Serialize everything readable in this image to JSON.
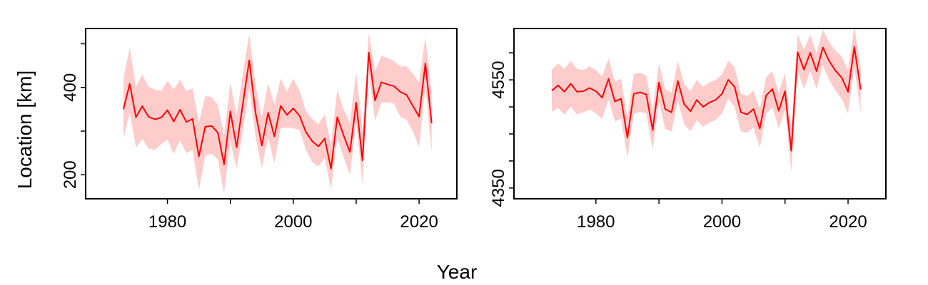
{
  "figure": {
    "xlabel": "Year",
    "ylabel": "Location [km]"
  },
  "chart_data": [
    {
      "type": "line",
      "title": "",
      "xlabel": "Year",
      "ylabel": "Location [km]",
      "xlim": [
        1967,
        2026
      ],
      "ylim": [
        145,
        535
      ],
      "x_ticks": [
        1980,
        2000,
        2020
      ],
      "x_minor_ticks": [
        1990,
        2010
      ],
      "y_ticks": [
        200,
        400
      ],
      "y_minor_ticks": [
        300,
        500
      ],
      "grid": false,
      "legend": "none",
      "line_color": "#ff0000",
      "band_color": "#ffcccc",
      "x": [
        1973,
        1974,
        1975,
        1976,
        1977,
        1978,
        1979,
        1980,
        1981,
        1982,
        1983,
        1984,
        1985,
        1986,
        1987,
        1988,
        1989,
        1990,
        1991,
        1992,
        1993,
        1994,
        1995,
        1996,
        1997,
        1998,
        1999,
        2000,
        2001,
        2002,
        2003,
        2004,
        2005,
        2006,
        2007,
        2008,
        2009,
        2010,
        2011,
        2012,
        2013,
        2014,
        2015,
        2016,
        2017,
        2018,
        2019,
        2020,
        2021,
        2022
      ],
      "y": [
        350,
        408,
        332,
        357,
        333,
        327,
        331,
        348,
        322,
        349,
        321,
        328,
        242,
        310,
        312,
        297,
        224,
        345,
        263,
        363,
        462,
        342,
        267,
        342,
        288,
        358,
        337,
        352,
        335,
        298,
        277,
        265,
        283,
        214,
        332,
        290,
        252,
        365,
        233,
        480,
        370,
        412,
        407,
        403,
        390,
        383,
        358,
        333,
        455,
        318
      ],
      "lower": [
        283,
        343,
        262,
        282,
        260,
        257,
        270,
        281,
        248,
        279,
        250,
        257,
        165,
        243,
        248,
        236,
        157,
        277,
        214,
        301,
        398,
        287,
        216,
        286,
        226,
        307,
        308,
        307,
        302,
        258,
        229,
        219,
        238,
        167,
        284,
        240,
        200,
        320,
        178,
        435,
        324,
        365,
        366,
        363,
        333,
        326,
        300,
        264,
        404,
        252
      ],
      "upper": [
        420,
        490,
        402,
        430,
        402,
        395,
        392,
        415,
        395,
        418,
        392,
        398,
        320,
        380,
        378,
        360,
        290,
        412,
        336,
        433,
        522,
        407,
        331,
        410,
        360,
        420,
        390,
        420,
        392,
        346,
        328,
        316,
        338,
        269,
        394,
        350,
        318,
        436,
        302,
        525,
        437,
        472,
        468,
        460,
        448,
        448,
        432,
        412,
        515,
        390
      ]
    },
    {
      "type": "line",
      "title": "",
      "xlabel": "Year",
      "ylabel": "",
      "xlim": [
        1967,
        2026
      ],
      "ylim": [
        4330,
        4645
      ],
      "x_ticks": [
        1980,
        2000,
        2020
      ],
      "x_minor_ticks": [
        1990,
        2010
      ],
      "y_ticks": [
        4350,
        4550
      ],
      "y_minor_ticks": [
        4400,
        4450,
        4500,
        4600
      ],
      "grid": false,
      "legend": "none",
      "line_color": "#ff0000",
      "band_color": "#ffcccc",
      "x": [
        1973,
        1974,
        1975,
        1976,
        1977,
        1978,
        1979,
        1980,
        1981,
        1982,
        1983,
        1984,
        1985,
        1986,
        1987,
        1988,
        1989,
        1990,
        1991,
        1992,
        1993,
        1994,
        1995,
        1996,
        1997,
        1998,
        1999,
        2000,
        2001,
        2002,
        2003,
        2004,
        2005,
        2006,
        2007,
        2008,
        2009,
        2010,
        2011,
        2012,
        2013,
        2014,
        2015,
        2016,
        2017,
        2018,
        2019,
        2020,
        2021,
        2022
      ],
      "y": [
        4530,
        4540,
        4528,
        4543,
        4528,
        4529,
        4535,
        4529,
        4517,
        4552,
        4510,
        4515,
        4443,
        4524,
        4527,
        4523,
        4457,
        4545,
        4496,
        4490,
        4548,
        4505,
        4492,
        4513,
        4500,
        4508,
        4513,
        4524,
        4550,
        4537,
        4490,
        4486,
        4496,
        4460,
        4521,
        4533,
        4493,
        4529,
        4419,
        4601,
        4569,
        4600,
        4566,
        4610,
        4585,
        4567,
        4554,
        4528,
        4611,
        4532
      ],
      "lower": [
        4491,
        4498,
        4486,
        4500,
        4486,
        4490,
        4495,
        4488,
        4478,
        4514,
        4473,
        4478,
        4406,
        4487,
        4491,
        4488,
        4420,
        4509,
        4459,
        4454,
        4512,
        4468,
        4455,
        4476,
        4463,
        4471,
        4476,
        4488,
        4515,
        4500,
        4455,
        4452,
        4462,
        4424,
        4487,
        4500,
        4460,
        4495,
        4380,
        4568,
        4533,
        4566,
        4533,
        4577,
        4550,
        4530,
        4515,
        4488,
        4573,
        4490
      ],
      "upper": [
        4569,
        4580,
        4570,
        4585,
        4570,
        4568,
        4575,
        4568,
        4556,
        4590,
        4547,
        4552,
        4480,
        4561,
        4563,
        4558,
        4494,
        4581,
        4533,
        4526,
        4585,
        4543,
        4529,
        4550,
        4537,
        4545,
        4550,
        4560,
        4585,
        4574,
        4525,
        4520,
        4530,
        4496,
        4555,
        4566,
        4526,
        4563,
        4458,
        4634,
        4605,
        4634,
        4599,
        4643,
        4620,
        4604,
        4593,
        4568,
        4649,
        4574
      ]
    }
  ]
}
